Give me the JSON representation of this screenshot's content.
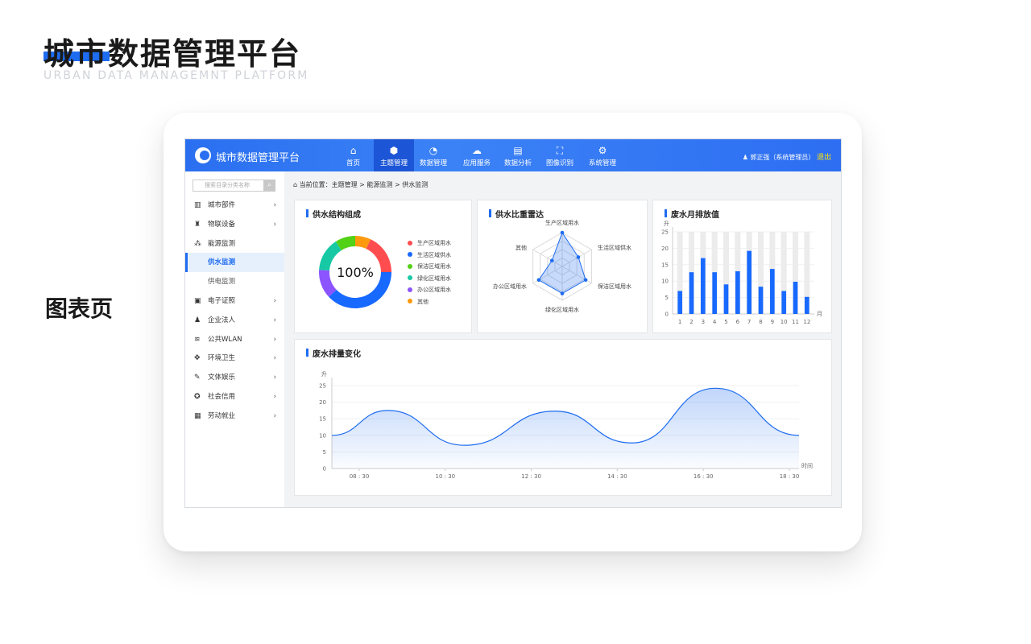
{
  "page": {
    "title": "城市数据管理平台",
    "subtitle": "URBAN DATA MANAGEMNT PLATFORM",
    "label": "图表页"
  },
  "header": {
    "app_title": "城市数据管理平台",
    "nav": [
      {
        "label": "首页",
        "icon": "home-icon",
        "glyph": "⌂"
      },
      {
        "label": "主题管理",
        "icon": "cube-icon",
        "glyph": "⬢",
        "active": true
      },
      {
        "label": "数据管理",
        "icon": "pie-chart-icon",
        "glyph": "◔"
      },
      {
        "label": "应用服务",
        "icon": "cloud-icon",
        "glyph": "☁"
      },
      {
        "label": "数据分析",
        "icon": "report-icon",
        "glyph": "▤"
      },
      {
        "label": "图像识别",
        "icon": "scan-icon",
        "glyph": "⛶"
      },
      {
        "label": "系统管理",
        "icon": "gear-icon",
        "glyph": "⚙"
      }
    ],
    "user": "郭正强（系统管理员）",
    "logout": "退出"
  },
  "sidebar": {
    "search_placeholder": "搜索目录分类名称",
    "items": [
      {
        "label": "城市部件",
        "icon": "building-icon",
        "glyph": "▥",
        "chevron": true
      },
      {
        "label": "物联设备",
        "icon": "network-icon",
        "glyph": "♜",
        "chevron": true
      },
      {
        "label": "能源监测",
        "icon": "topology-icon",
        "glyph": "⁂",
        "chevron": false
      },
      {
        "label": "供水监测",
        "sub": true,
        "active": true
      },
      {
        "label": "供电监测",
        "sub": true
      },
      {
        "label": "电子证照",
        "icon": "id-card-icon",
        "glyph": "▣",
        "chevron": true
      },
      {
        "label": "企业法人",
        "icon": "user-icon",
        "glyph": "♟",
        "chevron": true
      },
      {
        "label": "公共WLAN",
        "icon": "wifi-icon",
        "glyph": "≋",
        "chevron": true
      },
      {
        "label": "环境卫生",
        "icon": "diamond-icon",
        "glyph": "✥",
        "chevron": true
      },
      {
        "label": "文体娱乐",
        "icon": "microphone-icon",
        "glyph": "✎",
        "chevron": true
      },
      {
        "label": "社会信用",
        "icon": "badge-icon",
        "glyph": "✪",
        "chevron": true
      },
      {
        "label": "劳动就业",
        "icon": "briefcase-icon",
        "glyph": "▦",
        "chevron": true
      }
    ]
  },
  "breadcrumb": {
    "prefix": "当前位置：",
    "items": [
      "主题管理",
      "能源监测",
      "供水监测"
    ]
  },
  "colors": {
    "accent": "#1e6cf0"
  },
  "chart_data": [
    {
      "type": "pie",
      "title": "供水结构组成",
      "center_label": "100%",
      "donut": true,
      "slices": [
        {
          "name": "其他",
          "value": 7,
          "color": "#ff9a0e"
        },
        {
          "name": "生产区域用水",
          "value": 18,
          "color": "#ff4d4f"
        },
        {
          "name": "生活区域供水",
          "value": 38,
          "color": "#1769ff"
        },
        {
          "name": "办公区域用水",
          "value": 13,
          "color": "#8c54ff"
        },
        {
          "name": "绿化区域用水",
          "value": 15,
          "color": "#16c9a4"
        },
        {
          "name": "保洁区域用水",
          "value": 9,
          "color": "#52d117"
        }
      ],
      "legend": [
        "生产区域用水",
        "生活区域供水",
        "保洁区域用水",
        "绿化区域用水",
        "办公区域用水",
        "其他"
      ],
      "legend_placement": "right"
    },
    {
      "type": "radar",
      "title": "供水比重雷达",
      "max": 1,
      "indicators": [
        "生产区域用水",
        "生活区域供水",
        "保洁区域用水",
        "绿化区域用水",
        "办公区域用水",
        "其他"
      ],
      "values": [
        1.0,
        0.55,
        0.8,
        0.8,
        0.8,
        0.35
      ]
    },
    {
      "type": "bar",
      "title": "废水月排放值",
      "ylabel": "升",
      "xlabel": "月",
      "ylim": [
        0,
        25
      ],
      "yticks": [
        0,
        5,
        10,
        15,
        20,
        25
      ],
      "categories": [
        "1",
        "2",
        "3",
        "4",
        "5",
        "6",
        "7",
        "8",
        "9",
        "10",
        "11",
        "12"
      ],
      "values": [
        7,
        12.7,
        17,
        12.7,
        9,
        13,
        19.2,
        8.3,
        13.7,
        7,
        9.8,
        5.2
      ],
      "background_bars": true
    },
    {
      "type": "area",
      "title": "废水排量变化",
      "ylabel": "升",
      "xlabel": "时间",
      "ylim": [
        0,
        25
      ],
      "yticks": [
        0,
        5,
        10,
        15,
        20,
        25
      ],
      "xticks": [
        "08 : 30",
        "10 : 30",
        "12 : 30",
        "14 : 30",
        "16 : 30",
        "18 : 30"
      ],
      "x": [
        "07:50",
        "09:10",
        "11:00",
        "13:10",
        "15:00",
        "17:00",
        "19:00"
      ],
      "values": [
        10,
        17.5,
        7,
        17.3,
        7.7,
        24.2,
        10
      ],
      "smooth": true,
      "grid": true
    }
  ]
}
